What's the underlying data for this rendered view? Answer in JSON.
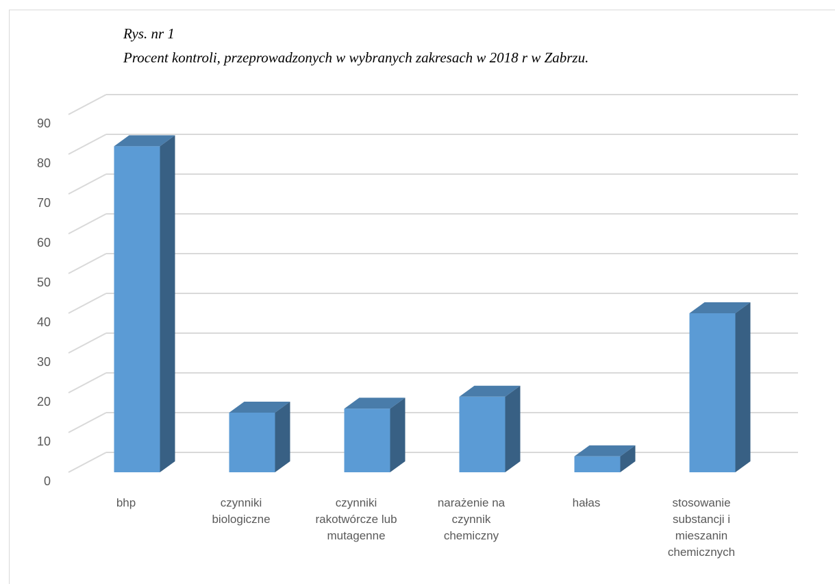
{
  "chart_data": {
    "type": "bar3d",
    "title": "Rys. nr 1",
    "subtitle": "Procent kontroli, przeprowadzonych w wybranych zakresach w  2018 r w Zabrzu.",
    "categories": [
      "bhp",
      "czynniki biologiczne",
      "czynniki rakotwórcze lub mutagenne",
      "narażenie na czynnik chemiczny",
      "hałas",
      "stosowanie substancji i mieszanin chemicznych"
    ],
    "values": [
      82,
      15,
      16,
      19,
      4,
      40
    ],
    "color": "#5b9bd5",
    "ylim": [
      0,
      90
    ],
    "yticks": [
      0,
      10,
      20,
      30,
      40,
      50,
      60,
      70,
      80,
      90
    ],
    "grid": true
  }
}
